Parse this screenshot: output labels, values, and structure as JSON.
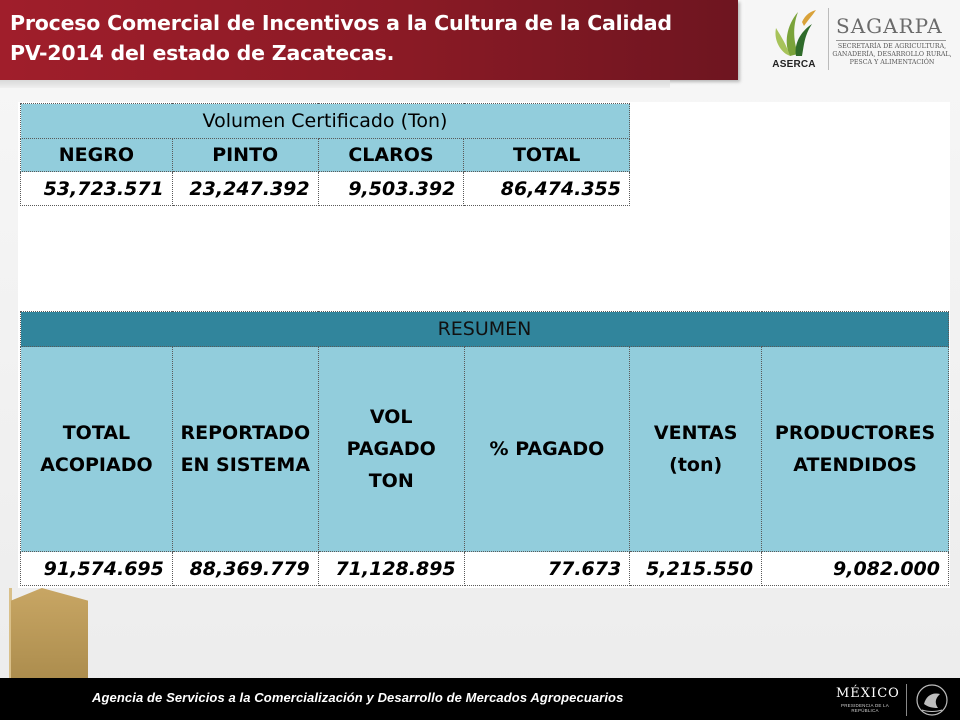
{
  "header": {
    "title_line1": "Proceso Comercial de Incentivos a la Cultura de la Calidad",
    "title_line2": "PV-2014 del estado de Zacatecas.",
    "aserca_label": "ASERCA",
    "sagarpa_name": "SAGARPA",
    "sagarpa_sub_line1": "SECRETARÍA DE AGRICULTURA,",
    "sagarpa_sub_line2": "GANADERÍA, DESARROLLO RURAL,",
    "sagarpa_sub_line3": "PESCA Y ALIMENTACIÓN"
  },
  "volumen_table": {
    "title": "Volumen Certificado (Ton)",
    "columns": [
      "NEGRO",
      "PINTO",
      "CLAROS",
      "TOTAL"
    ],
    "values": [
      "53,723.571",
      "23,247.392",
      "9,503.392",
      "86,474.355"
    ]
  },
  "resumen_table": {
    "title": "RESUMEN",
    "columns": [
      [
        "TOTAL",
        "ACOPIADO"
      ],
      [
        "REPORTADO",
        "EN SISTEMA"
      ],
      [
        "VOL",
        "PAGADO",
        "TON"
      ],
      [
        "% PAGADO"
      ],
      [
        "VENTAS",
        "(ton)"
      ],
      [
        "PRODUCTORES",
        "ATENDIDOS"
      ]
    ],
    "values": [
      "91,574.695",
      "88,369.779",
      "71,128.895",
      "77.673",
      "5,215.550",
      "9,082.000"
    ]
  },
  "footer": {
    "agency_text": "Agencia de Servicios a la Comercialización y Desarrollo de Mercados Agropecuarios",
    "mexico_logo": "MÉXICO",
    "mexico_sub": "PRESIDENCIA DE LA REPÚBLICA"
  },
  "colors": {
    "banner_red": "#8a1a25",
    "header_light_blue": "#92cddc",
    "resumen_dark_teal": "#31859c",
    "tab_tan": "#b8965a"
  }
}
